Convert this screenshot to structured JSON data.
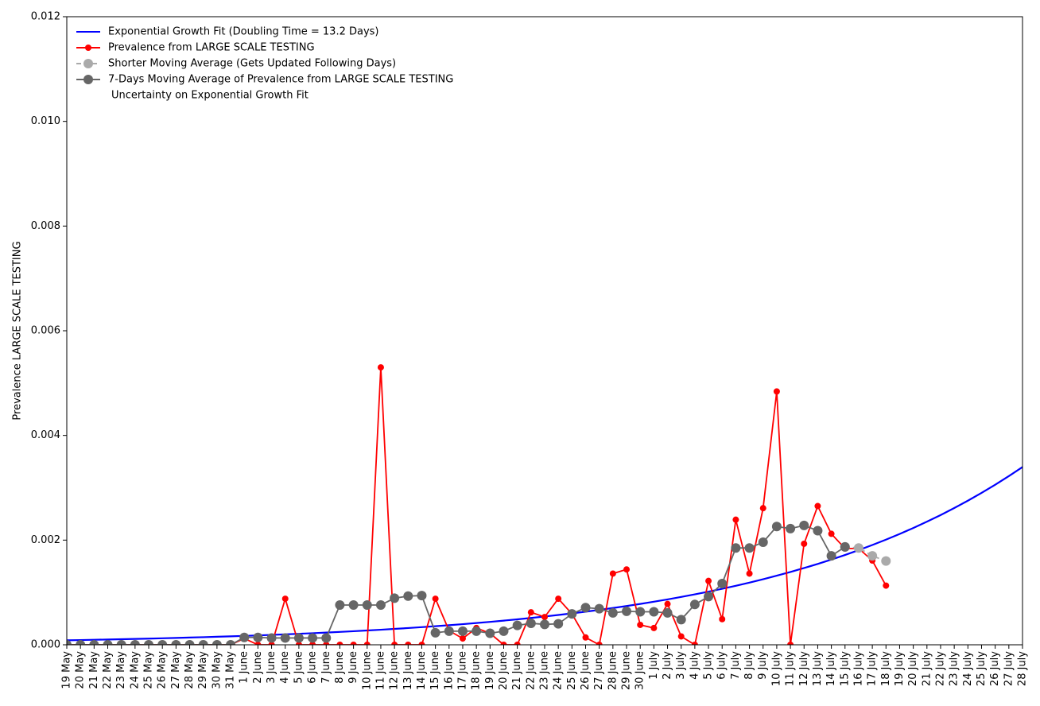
{
  "chart_data": {
    "type": "line",
    "ylabel": "Prevalence LARGE SCALE TESTING",
    "categories": [
      "19 May",
      "20 May",
      "21 May",
      "22 May",
      "23 May",
      "24 May",
      "25 May",
      "26 May",
      "27 May",
      "28 May",
      "29 May",
      "30 May",
      "31 May",
      "1 June",
      "2 June",
      "3 June",
      "4 June",
      "5 June",
      "6 June",
      "7 June",
      "8 June",
      "9 June",
      "10 June",
      "11 June",
      "12 June",
      "13 June",
      "14 June",
      "15 June",
      "16 June",
      "17 June",
      "18 June",
      "19 June",
      "20 June",
      "21 June",
      "22 June",
      "23 June",
      "24 June",
      "25 June",
      "26 June",
      "27 June",
      "28 June",
      "29 June",
      "30 June",
      "1 July",
      "2 July",
      "3 July",
      "4 July",
      "5 July",
      "6 July",
      "7 July",
      "8 July",
      "9 July",
      "10 July",
      "11 July",
      "12 July",
      "13 July",
      "14 July",
      "15 July",
      "16 July",
      "17 July",
      "18 July",
      "19 July",
      "20 July",
      "21 July",
      "22 July",
      "23 July",
      "24 July",
      "25 July",
      "26 July",
      "27 July",
      "28 July"
    ],
    "series": [
      {
        "name": "Exponential Growth Fit (Doubling Time = 13.2 Days)",
        "color": "#0000ff",
        "marker": false,
        "linestyle": "solid",
        "values": [
          8.6e-05,
          9.06e-05,
          9.55e-05,
          0.0001007,
          0.0001061,
          0.0001118,
          0.0001178,
          0.0001242,
          0.0001309,
          0.000138,
          0.0001454,
          0.0001532,
          0.0001615,
          0.0001702,
          0.0001794,
          0.0001891,
          0.0001993,
          0.00021,
          0.0002213,
          0.0002333,
          0.0002458,
          0.0002591,
          0.0002731,
          0.0002878,
          0.0003033,
          0.0003197,
          0.0003369,
          0.0003551,
          0.0003742,
          0.0003944,
          0.0004157,
          0.0004381,
          0.0004617,
          0.0004866,
          0.0005128,
          0.0005405,
          0.0005696,
          0.0006003,
          0.0006327,
          0.0006668,
          0.0007028,
          0.0007406,
          0.0007806,
          0.0008227,
          0.000867,
          0.0009138,
          0.0009631,
          0.001015,
          0.0010697,
          0.0011274,
          0.0011882,
          0.0012523,
          0.0013198,
          0.001391,
          0.001466,
          0.001545,
          0.0016283,
          0.0017161,
          0.0018087,
          0.0019062,
          0.002009,
          0.0021173,
          0.0022315,
          0.0023518,
          0.0024786,
          0.0026123,
          0.0027531,
          0.0029016,
          0.0030581,
          0.003223,
          0.0033968
        ]
      },
      {
        "name": "Prevalence from LARGE SCALE TESTING",
        "color": "#ff0000",
        "marker": true,
        "linestyle": "solid",
        "values": [
          0,
          0,
          0,
          0,
          0,
          0,
          0,
          0,
          0,
          0,
          0,
          0,
          0,
          0.00012,
          0,
          0,
          0.00088,
          0,
          0,
          0,
          0,
          0,
          0,
          0.0053,
          0,
          0,
          0,
          0.00088,
          0.00027,
          0.00012,
          0.00032,
          0.00022,
          0,
          0,
          0.00062,
          0.00053,
          0.00088,
          0.00059,
          0.00014,
          0,
          0.00136,
          0.00144,
          0.00038,
          0.00032,
          0.00078,
          0.00016,
          0,
          0.00122,
          0.00049,
          0.00239,
          0.00136,
          0.00261,
          0.00484,
          0,
          0.00193,
          0.00265,
          0.00212,
          0.00184,
          0.00184,
          0.00161,
          0.00113,
          null,
          null,
          null,
          null,
          null,
          null,
          null,
          null,
          null,
          null
        ]
      },
      {
        "name": "Shorter Moving Average (Gets Updated Following Days)",
        "color": "#aaaaaa",
        "marker": true,
        "linestyle": "dashed",
        "values": [
          null,
          null,
          null,
          null,
          null,
          null,
          null,
          null,
          null,
          null,
          null,
          null,
          null,
          null,
          null,
          null,
          null,
          null,
          null,
          null,
          null,
          null,
          null,
          null,
          null,
          null,
          null,
          null,
          null,
          null,
          null,
          null,
          null,
          null,
          null,
          null,
          null,
          null,
          null,
          null,
          null,
          null,
          null,
          null,
          null,
          null,
          null,
          null,
          null,
          null,
          null,
          null,
          null,
          null,
          null,
          null,
          null,
          0.00187,
          0.00185,
          0.0017,
          0.0016,
          null,
          null,
          null,
          null,
          null,
          null,
          null,
          null,
          null,
          null
        ]
      },
      {
        "name": "7-Days Moving Average of Prevalence from LARGE SCALE TESTING",
        "color": "#666666",
        "marker": true,
        "linestyle": "solid",
        "values": [
          0,
          0,
          0,
          0,
          0,
          0,
          0,
          0,
          0,
          0,
          0,
          0,
          0,
          0.00014,
          0.00014,
          0.00013,
          0.00013,
          0.00013,
          0.00013,
          0.00013,
          0.00076,
          0.00076,
          0.00076,
          0.00076,
          0.00089,
          0.00093,
          0.00094,
          0.00023,
          0.00026,
          0.00026,
          0.00026,
          0.00022,
          0.00026,
          0.00037,
          0.00041,
          0.00039,
          0.0004,
          0.00059,
          0.00071,
          0.00069,
          0.00061,
          0.00064,
          0.00063,
          0.00063,
          0.00061,
          0.00048,
          0.00077,
          0.00092,
          0.00117,
          0.00185,
          0.00185,
          0.00196,
          0.00226,
          0.00222,
          0.00228,
          0.00218,
          0.0017,
          0.00187,
          null,
          null,
          null,
          null,
          null,
          null,
          null,
          null,
          null,
          null,
          null,
          null,
          null
        ]
      }
    ],
    "uncertainty_label": "Uncertainty on Exponential Growth Fit",
    "ylim": [
      0,
      0.012
    ],
    "yticks": [
      {
        "value": 0,
        "label": "0.000"
      },
      {
        "value": 0.002,
        "label": "0.002"
      },
      {
        "value": 0.004,
        "label": "0.004"
      },
      {
        "value": 0.006,
        "label": "0.006"
      },
      {
        "value": 0.008,
        "label": "0.008"
      },
      {
        "value": 0.01,
        "label": "0.010"
      },
      {
        "value": 0.012,
        "label": "0.012"
      }
    ],
    "grid": false,
    "legend": "upper left"
  }
}
